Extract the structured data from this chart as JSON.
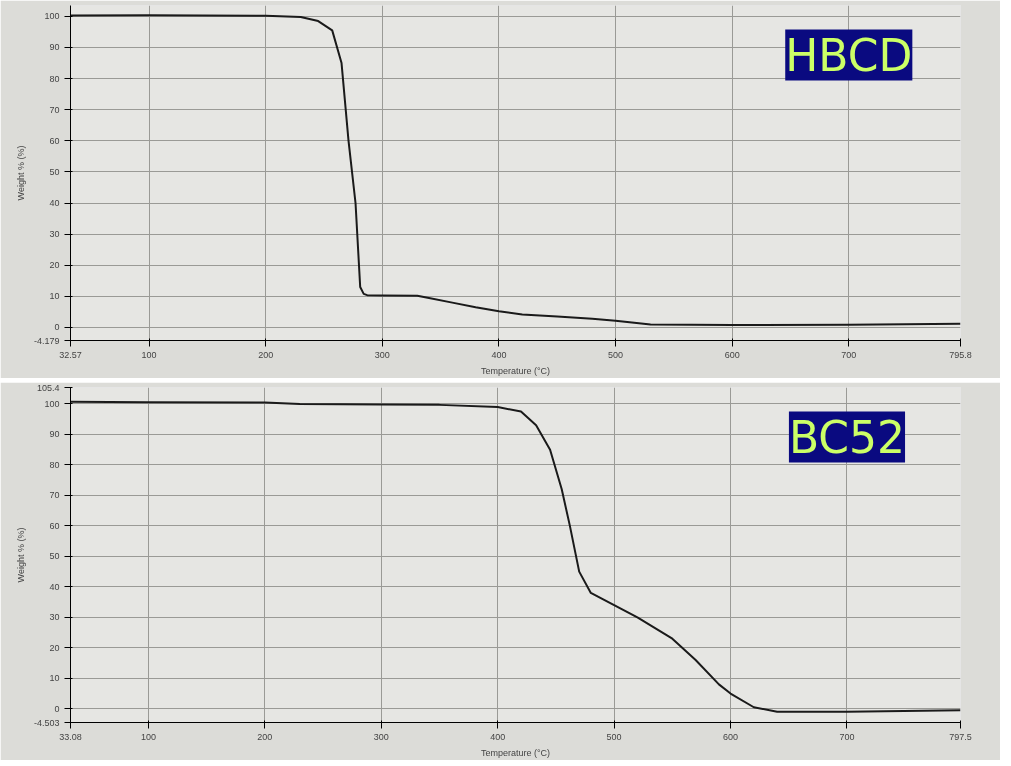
{
  "chart_data": [
    {
      "type": "line",
      "title": "HBCD",
      "xlabel": "Temperature (°C)",
      "ylabel": "Weight % (%)",
      "grid": true,
      "marker": "none",
      "line_style": "solid",
      "xlim": [
        32.57,
        795.8
      ],
      "ylim": [
        -4.179,
        103.5
      ],
      "xticks": [
        32.57,
        100,
        200,
        300,
        400,
        500,
        600,
        700,
        795.8
      ],
      "yticks": [
        -4.179,
        0,
        10,
        20,
        30,
        40,
        50,
        60,
        70,
        80,
        90,
        100
      ],
      "series": [
        {
          "color": "#1a1a1a",
          "x": [
            32.57,
            100,
            200,
            230,
            245,
            257,
            265,
            271,
            277,
            281,
            284,
            287,
            300,
            330,
            340,
            360,
            380,
            400,
            420,
            450,
            480,
            500,
            530,
            600,
            700,
            795.8
          ],
          "values": [
            100.3,
            100.4,
            100.2,
            99.8,
            98.5,
            95.5,
            85,
            60,
            40,
            13,
            10.8,
            10.4,
            10.3,
            10.2,
            9.5,
            8,
            6.5,
            5.2,
            4.2,
            3.5,
            2.8,
            2.2,
            1,
            0.8,
            0.9,
            1.2
          ]
        }
      ]
    },
    {
      "type": "line",
      "title": "BC52",
      "xlabel": "Temperature (°C)",
      "ylabel": "Weight % (%)",
      "grid": true,
      "marker": "none",
      "line_style": "solid",
      "xlim": [
        33.08,
        797.5
      ],
      "ylim": [
        -4.503,
        105.4
      ],
      "xticks": [
        33.08,
        100,
        200,
        300,
        400,
        500,
        600,
        700,
        797.5
      ],
      "yticks": [
        -4.503,
        0,
        10,
        20,
        30,
        40,
        50,
        60,
        70,
        80,
        90,
        100,
        105.4
      ],
      "series": [
        {
          "color": "#1a1a1a",
          "x": [
            33.08,
            100,
            200,
            230,
            300,
            350,
            400,
            420,
            433,
            445,
            455,
            462,
            470,
            480,
            500,
            520,
            550,
            570,
            590,
            600,
            620,
            640,
            700,
            797.5
          ],
          "values": [
            100.7,
            100.6,
            100.5,
            100,
            99.8,
            99.7,
            99,
            97.5,
            93,
            85,
            72,
            60,
            45,
            38,
            34,
            30,
            23,
            16,
            8,
            5,
            0.5,
            -1,
            -1,
            -0.5
          ]
        }
      ]
    }
  ]
}
